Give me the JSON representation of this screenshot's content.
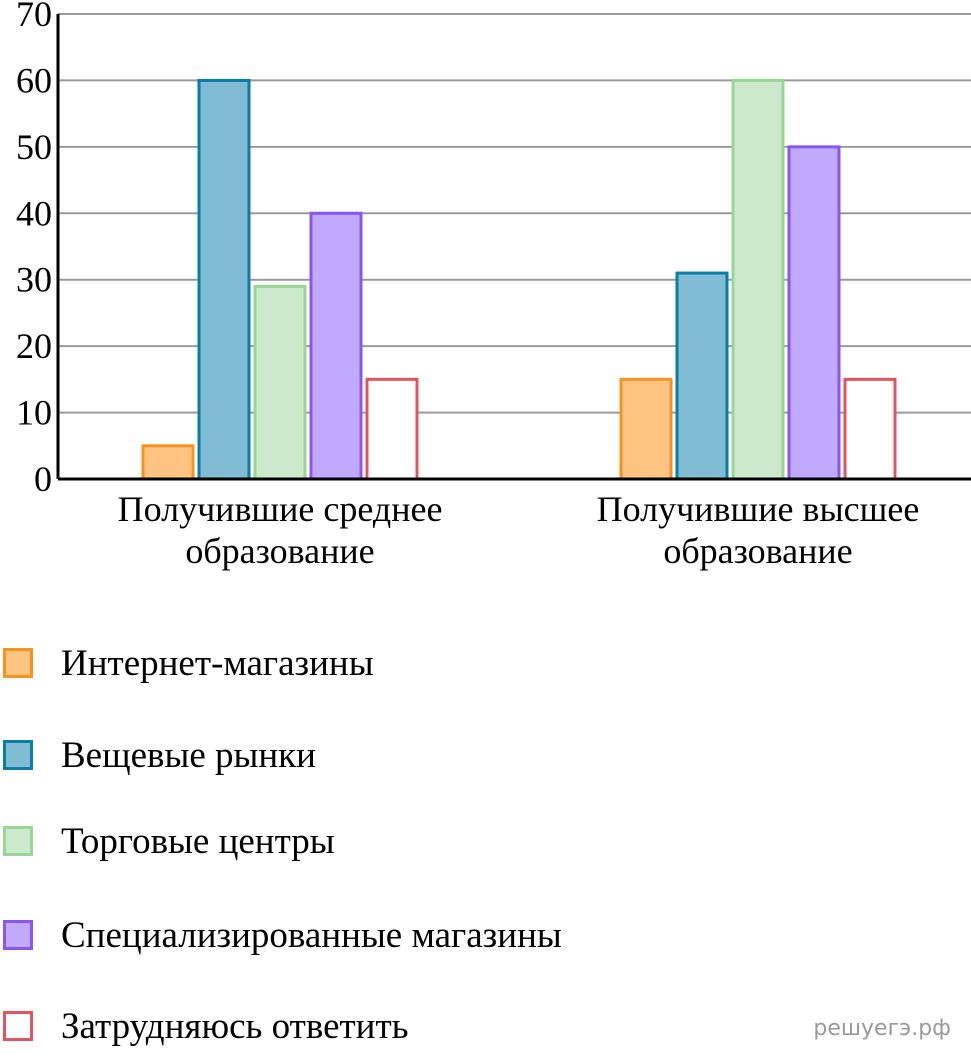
{
  "chart_data": {
    "type": "bar",
    "categories": [
      [
        "Получившие среднее",
        "образование"
      ],
      [
        "Получившие высшее",
        "образование"
      ]
    ],
    "series": [
      {
        "name": "Интернет-магазины",
        "values": [
          5,
          15
        ],
        "fill": "#ffc382",
        "stroke": "#f7931d"
      },
      {
        "name": "Вещевые рынки",
        "values": [
          60,
          31
        ],
        "fill": "#80bcd4",
        "stroke": "#0a7ea4"
      },
      {
        "name": "Торговые центры",
        "values": [
          29,
          60
        ],
        "fill": "#cde9cb",
        "stroke": "#99d596"
      },
      {
        "name": "Специализированные магазины",
        "values": [
          40,
          50
        ],
        "fill": "#bfaaff",
        "stroke": "#8b55f3"
      },
      {
        "name": "Затрудняюсь ответить",
        "values": [
          15,
          15
        ],
        "fill": "#ffffff",
        "stroke": "#e4545f"
      }
    ],
    "yticks": [
      "0",
      "10",
      "20",
      "30",
      "40",
      "50",
      "60",
      "70"
    ],
    "ylim": [
      0,
      70
    ],
    "grid": true,
    "legend_position": "bottom"
  },
  "watermark": "решуегэ.рф"
}
